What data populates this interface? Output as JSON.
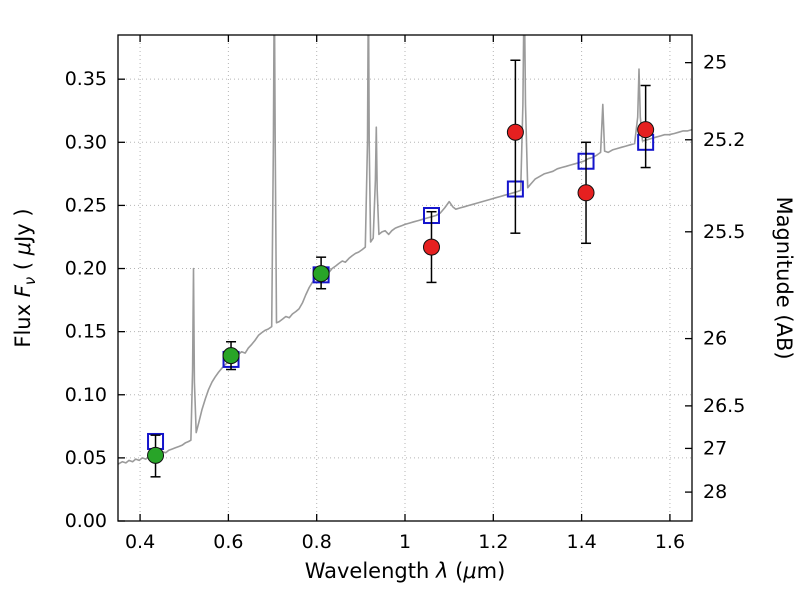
{
  "figure": {
    "background": "#ffffff"
  },
  "chart_data": {
    "type": "line+scatter",
    "title": "",
    "xlabel": "Wavelength λ (μm)",
    "ylabel_left": "Flux Fν ( μJy )",
    "ylabel_right": "Magnitude (AB)",
    "xlabel_parts": [
      {
        "t": "Wavelength  "
      },
      {
        "t": "λ",
        "s": "i"
      },
      {
        "t": "  ("
      },
      {
        "t": "μ",
        "s": "i"
      },
      {
        "t": "m)"
      }
    ],
    "ylabel_left_parts": [
      {
        "t": "Flux  "
      },
      {
        "t": "F",
        "s": "i"
      },
      {
        "t": "ν",
        "s": "sub"
      },
      {
        "t": "  ( "
      },
      {
        "t": "μ",
        "s": "i"
      },
      {
        "t": "Jy )"
      }
    ],
    "ylabel_right_parts": [
      {
        "t": "Magnitude (AB)"
      }
    ],
    "xlim": [
      0.35,
      1.65
    ],
    "ylim": [
      0.0,
      0.385
    ],
    "grid": true,
    "legend": "none",
    "x_ticks": [
      0.4,
      0.6,
      0.8,
      1.0,
      1.2,
      1.4,
      1.6
    ],
    "x_tick_labels": [
      "0.4",
      "0.6",
      "0.8",
      "1",
      "1.2",
      "1.4",
      "1.6"
    ],
    "y_ticks_left": [
      0.0,
      0.05,
      0.1,
      0.15,
      0.2,
      0.25,
      0.3,
      0.35
    ],
    "y_tick_labels_left": [
      "0.00",
      "0.05",
      "0.10",
      "0.15",
      "0.20",
      "0.25",
      "0.30",
      "0.35"
    ],
    "y_ticks_right_mag": [
      25,
      25.2,
      25.5,
      26,
      26.5,
      27,
      28
    ],
    "y_ticks_right_flux": [
      0.3631,
      0.302,
      0.2291,
      0.1445,
      0.0912,
      0.0575,
      0.0229
    ],
    "y_tick_labels_right": [
      "25",
      "25.2",
      "25.5",
      "26",
      "26.5",
      "27",
      "28"
    ],
    "colors": {
      "spectrum": "#9b9b9b",
      "observed_optical": "#28a428",
      "observed_nir": "#e62020",
      "model_photometry": "#1414cc",
      "error_bar": "#000000",
      "grid": "#b5b5b5",
      "frame": "#000000"
    },
    "series": [
      {
        "name": "model spectrum",
        "type": "line",
        "color": "#9b9b9b",
        "points": [
          [
            0.35,
            0.045
          ],
          [
            0.36,
            0.047
          ],
          [
            0.368,
            0.046
          ],
          [
            0.375,
            0.048
          ],
          [
            0.383,
            0.047
          ],
          [
            0.39,
            0.049
          ],
          [
            0.398,
            0.048
          ],
          [
            0.405,
            0.05
          ],
          [
            0.413,
            0.049
          ],
          [
            0.42,
            0.051
          ],
          [
            0.428,
            0.052
          ],
          [
            0.435,
            0.052
          ],
          [
            0.443,
            0.054
          ],
          [
            0.45,
            0.055
          ],
          [
            0.458,
            0.054
          ],
          [
            0.465,
            0.056
          ],
          [
            0.473,
            0.057
          ],
          [
            0.48,
            0.058
          ],
          [
            0.488,
            0.059
          ],
          [
            0.495,
            0.06
          ],
          [
            0.503,
            0.062
          ],
          [
            0.51,
            0.063
          ],
          [
            0.515,
            0.064
          ],
          [
            0.519,
            0.12
          ],
          [
            0.521,
            0.2
          ],
          [
            0.523,
            0.11
          ],
          [
            0.527,
            0.07
          ],
          [
            0.533,
            0.078
          ],
          [
            0.54,
            0.088
          ],
          [
            0.548,
            0.097
          ],
          [
            0.555,
            0.104
          ],
          [
            0.563,
            0.11
          ],
          [
            0.57,
            0.114
          ],
          [
            0.578,
            0.118
          ],
          [
            0.585,
            0.121
          ],
          [
            0.593,
            0.124
          ],
          [
            0.6,
            0.126
          ],
          [
            0.608,
            0.128
          ],
          [
            0.615,
            0.13
          ],
          [
            0.623,
            0.132
          ],
          [
            0.63,
            0.134
          ],
          [
            0.638,
            0.133
          ],
          [
            0.645,
            0.137
          ],
          [
            0.653,
            0.14
          ],
          [
            0.66,
            0.143
          ],
          [
            0.668,
            0.147
          ],
          [
            0.675,
            0.149
          ],
          [
            0.683,
            0.151
          ],
          [
            0.69,
            0.152
          ],
          [
            0.698,
            0.154
          ],
          [
            0.702,
            0.3
          ],
          [
            0.704,
            0.43
          ],
          [
            0.706,
            0.3
          ],
          [
            0.709,
            0.157
          ],
          [
            0.715,
            0.158
          ],
          [
            0.723,
            0.16
          ],
          [
            0.73,
            0.162
          ],
          [
            0.738,
            0.161
          ],
          [
            0.745,
            0.164
          ],
          [
            0.753,
            0.166
          ],
          [
            0.76,
            0.168
          ],
          [
            0.768,
            0.173
          ],
          [
            0.775,
            0.179
          ],
          [
            0.783,
            0.185
          ],
          [
            0.79,
            0.189
          ],
          [
            0.798,
            0.192
          ],
          [
            0.805,
            0.194
          ],
          [
            0.813,
            0.196
          ],
          [
            0.82,
            0.198
          ],
          [
            0.828,
            0.197
          ],
          [
            0.835,
            0.2
          ],
          [
            0.843,
            0.202
          ],
          [
            0.85,
            0.204
          ],
          [
            0.858,
            0.206
          ],
          [
            0.865,
            0.205
          ],
          [
            0.873,
            0.208
          ],
          [
            0.88,
            0.21
          ],
          [
            0.888,
            0.212
          ],
          [
            0.895,
            0.213
          ],
          [
            0.903,
            0.215
          ],
          [
            0.91,
            0.217
          ],
          [
            0.915,
            0.3
          ],
          [
            0.917,
            0.43
          ],
          [
            0.919,
            0.3
          ],
          [
            0.922,
            0.221
          ],
          [
            0.928,
            0.224
          ],
          [
            0.933,
            0.27
          ],
          [
            0.935,
            0.312
          ],
          [
            0.937,
            0.262
          ],
          [
            0.941,
            0.227
          ],
          [
            0.948,
            0.229
          ],
          [
            0.955,
            0.23
          ],
          [
            0.963,
            0.227
          ],
          [
            0.97,
            0.23
          ],
          [
            0.978,
            0.232
          ],
          [
            0.985,
            0.233
          ],
          [
            0.993,
            0.234
          ],
          [
            1.0,
            0.235
          ],
          [
            1.01,
            0.236
          ],
          [
            1.02,
            0.237
          ],
          [
            1.03,
            0.238
          ],
          [
            1.04,
            0.239
          ],
          [
            1.05,
            0.24
          ],
          [
            1.06,
            0.241
          ],
          [
            1.07,
            0.242
          ],
          [
            1.08,
            0.244
          ],
          [
            1.09,
            0.248
          ],
          [
            1.1,
            0.253
          ],
          [
            1.108,
            0.249
          ],
          [
            1.115,
            0.247
          ],
          [
            1.125,
            0.248
          ],
          [
            1.135,
            0.249
          ],
          [
            1.145,
            0.25
          ],
          [
            1.155,
            0.251
          ],
          [
            1.165,
            0.252
          ],
          [
            1.175,
            0.253
          ],
          [
            1.185,
            0.254
          ],
          [
            1.195,
            0.255
          ],
          [
            1.205,
            0.256
          ],
          [
            1.215,
            0.257
          ],
          [
            1.225,
            0.258
          ],
          [
            1.235,
            0.259
          ],
          [
            1.245,
            0.26
          ],
          [
            1.255,
            0.261
          ],
          [
            1.262,
            0.262
          ],
          [
            1.267,
            0.33
          ],
          [
            1.27,
            0.43
          ],
          [
            1.273,
            0.33
          ],
          [
            1.278,
            0.264
          ],
          [
            1.285,
            0.267
          ],
          [
            1.295,
            0.271
          ],
          [
            1.305,
            0.273
          ],
          [
            1.315,
            0.275
          ],
          [
            1.325,
            0.276
          ],
          [
            1.335,
            0.277
          ],
          [
            1.345,
            0.279
          ],
          [
            1.355,
            0.28
          ],
          [
            1.365,
            0.281
          ],
          [
            1.375,
            0.282
          ],
          [
            1.385,
            0.283
          ],
          [
            1.395,
            0.284
          ],
          [
            1.405,
            0.285
          ],
          [
            1.415,
            0.287
          ],
          [
            1.425,
            0.288
          ],
          [
            1.435,
            0.29
          ],
          [
            1.443,
            0.292
          ],
          [
            1.448,
            0.33
          ],
          [
            1.452,
            0.293
          ],
          [
            1.46,
            0.292
          ],
          [
            1.47,
            0.294
          ],
          [
            1.48,
            0.295
          ],
          [
            1.49,
            0.296
          ],
          [
            1.5,
            0.297
          ],
          [
            1.51,
            0.298
          ],
          [
            1.52,
            0.299
          ],
          [
            1.527,
            0.32
          ],
          [
            1.53,
            0.358
          ],
          [
            1.533,
            0.32
          ],
          [
            1.538,
            0.301
          ],
          [
            1.548,
            0.302
          ],
          [
            1.558,
            0.303
          ],
          [
            1.568,
            0.304
          ],
          [
            1.578,
            0.305
          ],
          [
            1.588,
            0.306
          ],
          [
            1.598,
            0.306
          ],
          [
            1.61,
            0.307
          ],
          [
            1.62,
            0.308
          ],
          [
            1.63,
            0.309
          ],
          [
            1.64,
            0.309
          ],
          [
            1.65,
            0.31
          ]
        ]
      },
      {
        "name": "model photometry",
        "type": "scatter",
        "marker": "open-square",
        "color": "#1414cc",
        "points": [
          {
            "x": 0.435,
            "y": 0.063
          },
          {
            "x": 0.606,
            "y": 0.128
          },
          {
            "x": 0.81,
            "y": 0.195
          },
          {
            "x": 1.06,
            "y": 0.242
          },
          {
            "x": 1.25,
            "y": 0.263
          },
          {
            "x": 1.41,
            "y": 0.285
          },
          {
            "x": 1.545,
            "y": 0.3
          }
        ]
      },
      {
        "name": "observed photometry optical",
        "type": "scatter",
        "marker": "circle",
        "color": "#28a428",
        "points": [
          {
            "x": 0.435,
            "y": 0.052,
            "err_lo": 0.017,
            "err_hi": 0.016
          },
          {
            "x": 0.606,
            "y": 0.131,
            "err_lo": 0.011,
            "err_hi": 0.011
          },
          {
            "x": 0.81,
            "y": 0.196,
            "err_lo": 0.012,
            "err_hi": 0.013
          }
        ]
      },
      {
        "name": "observed photometry infrared",
        "type": "scatter",
        "marker": "circle",
        "color": "#e62020",
        "points": [
          {
            "x": 1.06,
            "y": 0.217,
            "err_lo": 0.028,
            "err_hi": 0.028
          },
          {
            "x": 1.25,
            "y": 0.308,
            "err_lo": 0.08,
            "err_hi": 0.057
          },
          {
            "x": 1.41,
            "y": 0.26,
            "err_lo": 0.04,
            "err_hi": 0.04
          },
          {
            "x": 1.545,
            "y": 0.31,
            "err_lo": 0.03,
            "err_hi": 0.035
          }
        ]
      }
    ]
  }
}
